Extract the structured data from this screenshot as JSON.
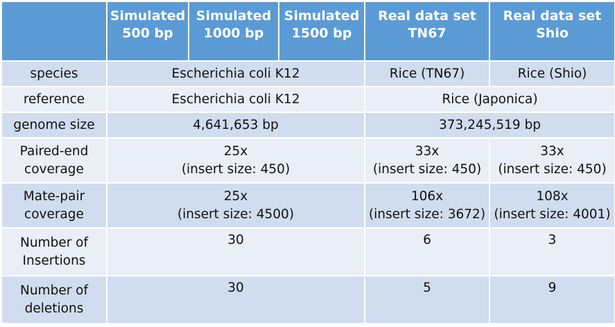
{
  "header": {
    "sim500": [
      "Simulated",
      "500 bp"
    ],
    "sim1000": [
      "Simulated",
      "1000 bp"
    ],
    "sim1500": [
      "Simulated",
      "1500 bp"
    ],
    "tn67": [
      "Real data set",
      "TN67"
    ],
    "shio": [
      "Real data set",
      "Shio"
    ]
  },
  "rows": {
    "species": {
      "label": "species",
      "simulated": "Escherichia coli K12",
      "tn67": "Rice (TN67)",
      "shio": "Rice (Shio)"
    },
    "reference": {
      "label": "reference",
      "simulated": "Escherichia coli K12",
      "real": "Rice (Japonica)"
    },
    "genome_size": {
      "label": "genome size",
      "simulated": "4,641,653 bp",
      "real": "373,245,519 bp"
    },
    "paired_end": {
      "label": [
        "Paired-end",
        "coverage"
      ],
      "simulated": [
        "25x",
        "(insert size: 450)"
      ],
      "tn67": [
        "33x",
        "(insert size: 450)"
      ],
      "shio": [
        "33x",
        "(insert size: 450)"
      ]
    },
    "mate_pair": {
      "label": [
        "Mate-pair",
        "coverage"
      ],
      "simulated": [
        "25x",
        "(insert size: 4500)"
      ],
      "tn67": [
        "106x",
        "(insert size: 3672)"
      ],
      "shio": [
        "108x",
        "(insert size: 4001)"
      ]
    },
    "insertions": {
      "label": [
        "Number of",
        "Insertions"
      ],
      "simulated": "30",
      "tn67": "6",
      "shio": "3"
    },
    "deletions": {
      "label": [
        "Number of",
        "deletions"
      ],
      "simulated": "30",
      "tn67": "5",
      "shio": "9"
    }
  }
}
